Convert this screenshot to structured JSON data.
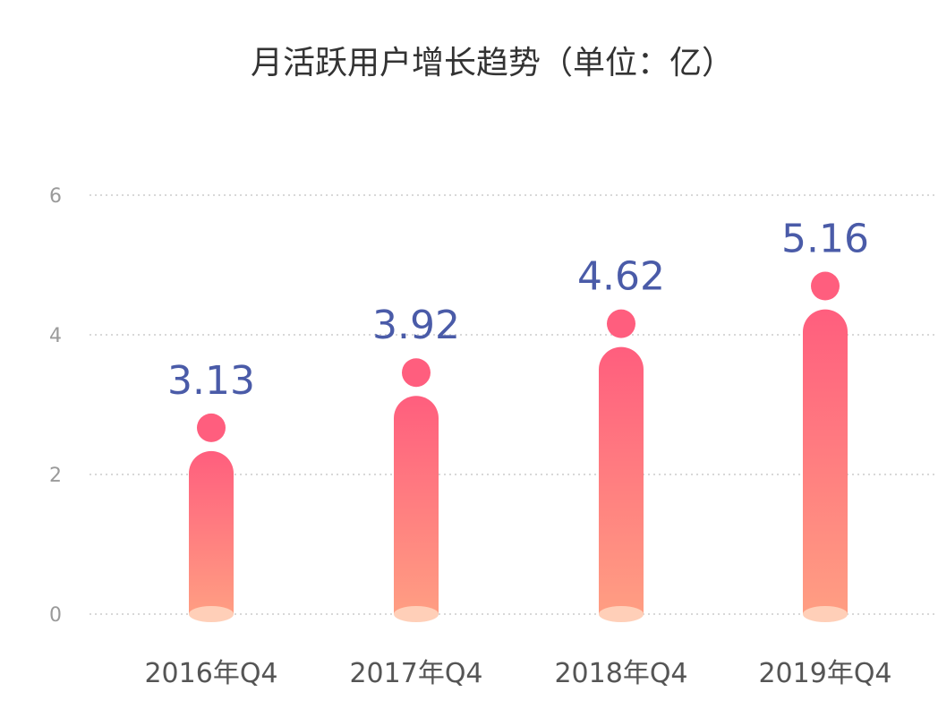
{
  "chart_data": {
    "type": "bar",
    "title": "月活跃用户增长趋势（单位：亿）",
    "categories": [
      "2016年Q4",
      "2017年Q4",
      "2018年Q4",
      "2019年Q4"
    ],
    "values": [
      3.13,
      3.92,
      4.62,
      5.16
    ],
    "data_labels": [
      "3.13",
      "3.92",
      "4.62",
      "5.16"
    ],
    "y_ticks": [
      "0",
      "2",
      "4",
      "6"
    ],
    "ylim": [
      0,
      6
    ],
    "grid": true,
    "legend": "none",
    "colors": {
      "bar_top": "#FF5E7E",
      "bar_bottom": "#FF9E82",
      "bar_base": "#FFCFB8",
      "value_label": "#4A5BA8",
      "axis_text": "#9A9A9A",
      "gridline": "#D8D8D8"
    }
  }
}
